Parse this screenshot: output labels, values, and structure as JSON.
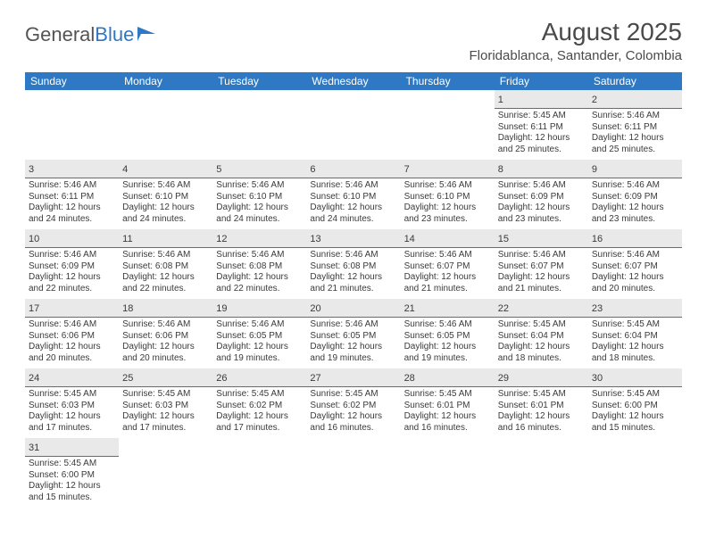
{
  "brand": {
    "part1": "General",
    "part2": "Blue"
  },
  "title": "August 2025",
  "location": "Floridablanca, Santander, Colombia",
  "colors": {
    "header_bg": "#2f78c3",
    "header_text": "#ffffff",
    "daynum_bg": "#e9e9e9",
    "day_divider": "#2f78c3",
    "body_text": "#3a3a3a",
    "title_text": "#4a4a4a",
    "page_bg": "#ffffff"
  },
  "typography": {
    "month_title_pt": 28,
    "location_pt": 15,
    "weekday_pt": 12,
    "daynum_pt": 11,
    "body_pt": 10,
    "logo_pt": 22
  },
  "weekdays": [
    "Sunday",
    "Monday",
    "Tuesday",
    "Wednesday",
    "Thursday",
    "Friday",
    "Saturday"
  ],
  "grid": {
    "rows": 6,
    "cols": 7,
    "leading_blanks": 5,
    "days_in_month": 31
  },
  "days": [
    {
      "n": 1,
      "sunrise": "5:45 AM",
      "sunset": "6:11 PM",
      "daylight": "12 hours and 25 minutes."
    },
    {
      "n": 2,
      "sunrise": "5:46 AM",
      "sunset": "6:11 PM",
      "daylight": "12 hours and 25 minutes."
    },
    {
      "n": 3,
      "sunrise": "5:46 AM",
      "sunset": "6:11 PM",
      "daylight": "12 hours and 24 minutes."
    },
    {
      "n": 4,
      "sunrise": "5:46 AM",
      "sunset": "6:10 PM",
      "daylight": "12 hours and 24 minutes."
    },
    {
      "n": 5,
      "sunrise": "5:46 AM",
      "sunset": "6:10 PM",
      "daylight": "12 hours and 24 minutes."
    },
    {
      "n": 6,
      "sunrise": "5:46 AM",
      "sunset": "6:10 PM",
      "daylight": "12 hours and 24 minutes."
    },
    {
      "n": 7,
      "sunrise": "5:46 AM",
      "sunset": "6:10 PM",
      "daylight": "12 hours and 23 minutes."
    },
    {
      "n": 8,
      "sunrise": "5:46 AM",
      "sunset": "6:09 PM",
      "daylight": "12 hours and 23 minutes."
    },
    {
      "n": 9,
      "sunrise": "5:46 AM",
      "sunset": "6:09 PM",
      "daylight": "12 hours and 23 minutes."
    },
    {
      "n": 10,
      "sunrise": "5:46 AM",
      "sunset": "6:09 PM",
      "daylight": "12 hours and 22 minutes."
    },
    {
      "n": 11,
      "sunrise": "5:46 AM",
      "sunset": "6:08 PM",
      "daylight": "12 hours and 22 minutes."
    },
    {
      "n": 12,
      "sunrise": "5:46 AM",
      "sunset": "6:08 PM",
      "daylight": "12 hours and 22 minutes."
    },
    {
      "n": 13,
      "sunrise": "5:46 AM",
      "sunset": "6:08 PM",
      "daylight": "12 hours and 21 minutes."
    },
    {
      "n": 14,
      "sunrise": "5:46 AM",
      "sunset": "6:07 PM",
      "daylight": "12 hours and 21 minutes."
    },
    {
      "n": 15,
      "sunrise": "5:46 AM",
      "sunset": "6:07 PM",
      "daylight": "12 hours and 21 minutes."
    },
    {
      "n": 16,
      "sunrise": "5:46 AM",
      "sunset": "6:07 PM",
      "daylight": "12 hours and 20 minutes."
    },
    {
      "n": 17,
      "sunrise": "5:46 AM",
      "sunset": "6:06 PM",
      "daylight": "12 hours and 20 minutes."
    },
    {
      "n": 18,
      "sunrise": "5:46 AM",
      "sunset": "6:06 PM",
      "daylight": "12 hours and 20 minutes."
    },
    {
      "n": 19,
      "sunrise": "5:46 AM",
      "sunset": "6:05 PM",
      "daylight": "12 hours and 19 minutes."
    },
    {
      "n": 20,
      "sunrise": "5:46 AM",
      "sunset": "6:05 PM",
      "daylight": "12 hours and 19 minutes."
    },
    {
      "n": 21,
      "sunrise": "5:46 AM",
      "sunset": "6:05 PM",
      "daylight": "12 hours and 19 minutes."
    },
    {
      "n": 22,
      "sunrise": "5:45 AM",
      "sunset": "6:04 PM",
      "daylight": "12 hours and 18 minutes."
    },
    {
      "n": 23,
      "sunrise": "5:45 AM",
      "sunset": "6:04 PM",
      "daylight": "12 hours and 18 minutes."
    },
    {
      "n": 24,
      "sunrise": "5:45 AM",
      "sunset": "6:03 PM",
      "daylight": "12 hours and 17 minutes."
    },
    {
      "n": 25,
      "sunrise": "5:45 AM",
      "sunset": "6:03 PM",
      "daylight": "12 hours and 17 minutes."
    },
    {
      "n": 26,
      "sunrise": "5:45 AM",
      "sunset": "6:02 PM",
      "daylight": "12 hours and 17 minutes."
    },
    {
      "n": 27,
      "sunrise": "5:45 AM",
      "sunset": "6:02 PM",
      "daylight": "12 hours and 16 minutes."
    },
    {
      "n": 28,
      "sunrise": "5:45 AM",
      "sunset": "6:01 PM",
      "daylight": "12 hours and 16 minutes."
    },
    {
      "n": 29,
      "sunrise": "5:45 AM",
      "sunset": "6:01 PM",
      "daylight": "12 hours and 16 minutes."
    },
    {
      "n": 30,
      "sunrise": "5:45 AM",
      "sunset": "6:00 PM",
      "daylight": "12 hours and 15 minutes."
    },
    {
      "n": 31,
      "sunrise": "5:45 AM",
      "sunset": "6:00 PM",
      "daylight": "12 hours and 15 minutes."
    }
  ],
  "labels": {
    "sunrise": "Sunrise:",
    "sunset": "Sunset:",
    "daylight": "Daylight:"
  }
}
